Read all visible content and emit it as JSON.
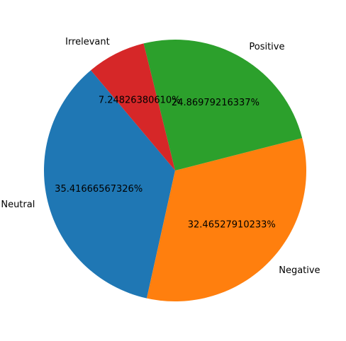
{
  "chart_data": {
    "type": "pie",
    "title": "",
    "slices": [
      {
        "label": "Neutral",
        "value": 35.41666567326,
        "pct_label": "35.41666567326%",
        "color": "#1f77b4"
      },
      {
        "label": "Negative",
        "value": 32.46527910233,
        "pct_label": "32.46527910233%",
        "color": "#ff7f0e"
      },
      {
        "label": "Positive",
        "value": 24.86979216337,
        "pct_label": "24.86979216337%",
        "color": "#2ca02c"
      },
      {
        "label": "Irrelevant",
        "value": 7.2482638061,
        "pct_label": "7.24826380610%",
        "color": "#d62728"
      }
    ],
    "start_angle_deg": 130,
    "direction": "counterclockwise"
  }
}
